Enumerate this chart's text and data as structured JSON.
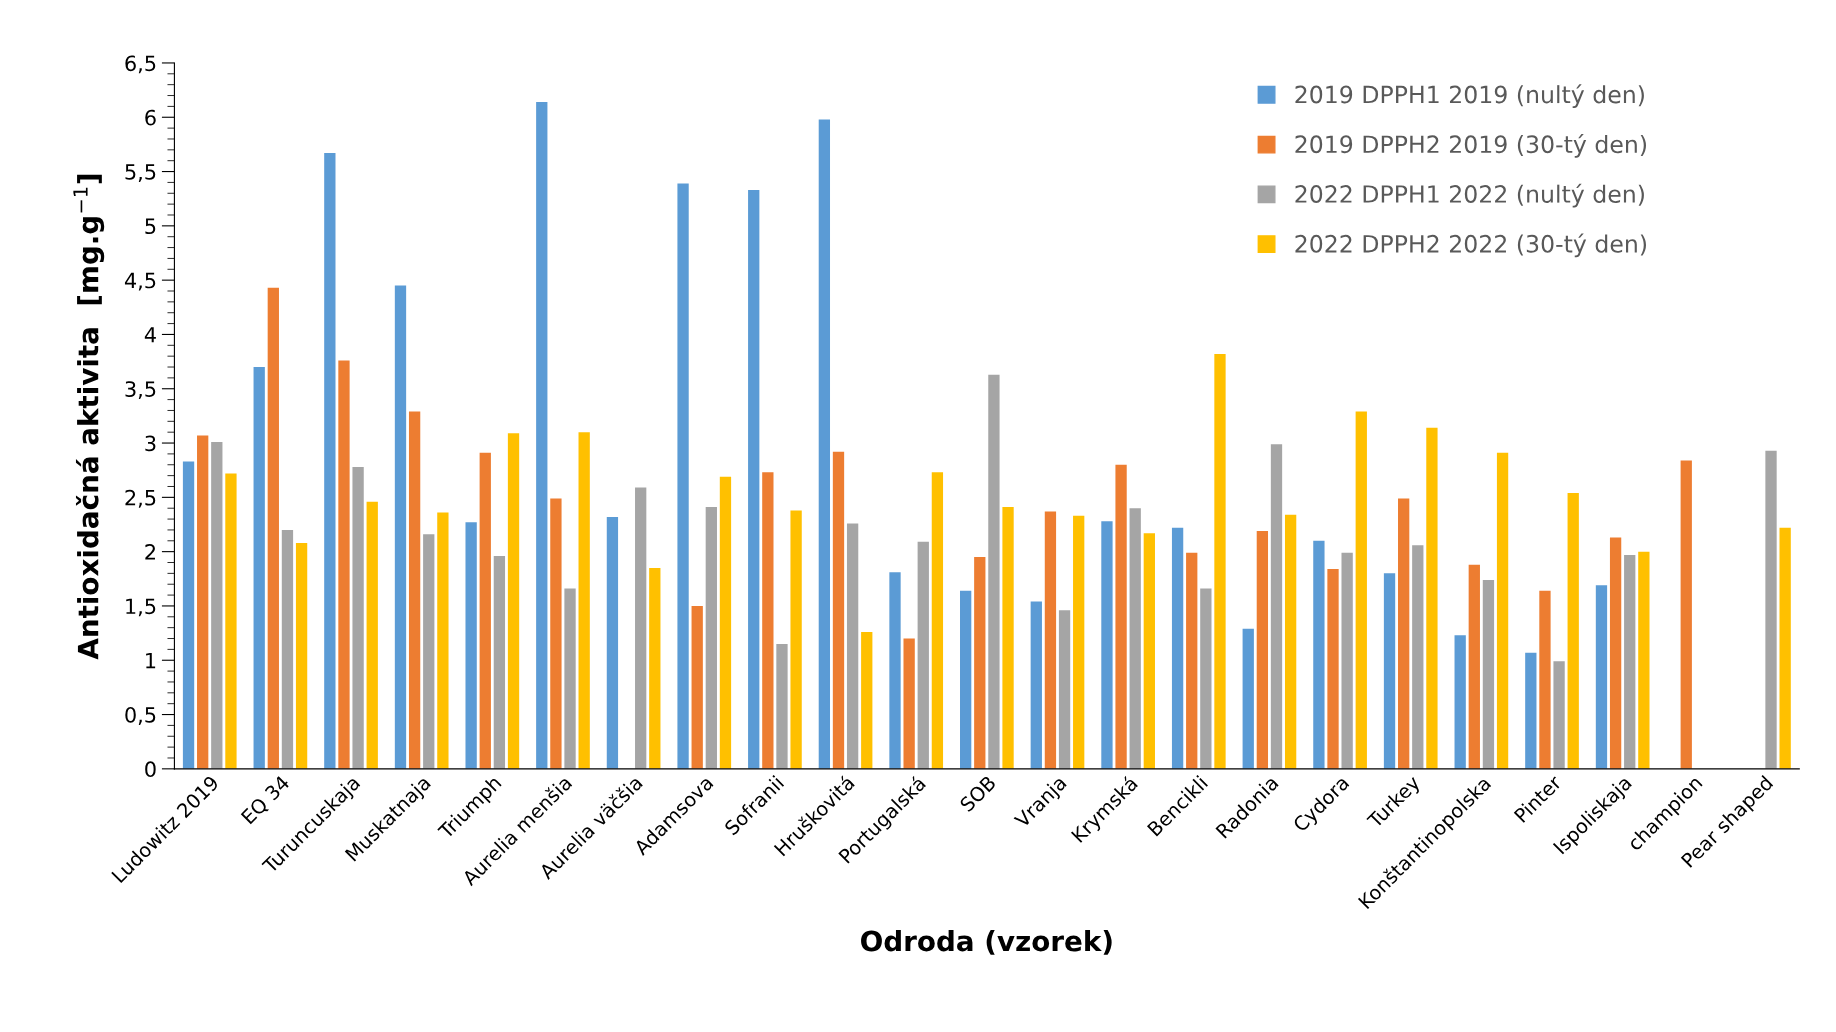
{
  "chart_data": {
    "type": "bar",
    "xlabel": "Odroda (vzorek)",
    "ylabel": "Antioxidačná aktivita  [mg.g$^{−1}$]",
    "categories": [
      "Ludowitz 2019",
      "EQ 34",
      "Turuncuskaja",
      "Muskatnaja",
      "Triumph",
      "Aurelia menšia",
      "Aurelia väčšia",
      "Adamsova",
      "Sofranii",
      "Hruškovitá",
      "Portugalská",
      "SOB",
      "Vranja",
      "Krymská",
      "Bencikli",
      "Radonia",
      "Cydora",
      "Turkey",
      "Konštantinopolska",
      "Pinter",
      "Ispoliskaja",
      "champion",
      "Pear shaped"
    ],
    "series": [
      {
        "name": "2019 DPPH1 2019 (nultý den)",
        "color": "#5b9bd5",
        "values": [
          2.83,
          3.7,
          5.67,
          4.45,
          2.27,
          6.14,
          2.32,
          5.39,
          5.33,
          5.98,
          1.81,
          1.64,
          1.54,
          2.28,
          2.22,
          1.29,
          2.1,
          1.8,
          1.23,
          1.07,
          1.69,
          null,
          null
        ]
      },
      {
        "name": "2019 DPPH2 2019 (30-tý den)",
        "color": "#ed7d31",
        "values": [
          3.07,
          4.43,
          3.76,
          3.29,
          2.91,
          2.49,
          null,
          1.5,
          2.73,
          2.92,
          1.2,
          1.95,
          2.37,
          2.8,
          1.99,
          2.19,
          1.84,
          2.49,
          1.88,
          1.64,
          2.13,
          2.84,
          null
        ]
      },
      {
        "name": "2022 DPPH1 2022 (nultý den)",
        "color": "#a5a5a5",
        "values": [
          3.01,
          2.2,
          2.78,
          2.16,
          1.96,
          1.66,
          2.59,
          2.41,
          1.15,
          2.26,
          2.09,
          3.63,
          1.46,
          2.4,
          1.66,
          2.99,
          1.99,
          2.06,
          1.74,
          0.99,
          1.97,
          null,
          2.93
        ]
      },
      {
        "name": "2022 DPPH2 2022 (30-tý den)",
        "color": "#ffc000",
        "values": [
          2.72,
          2.08,
          2.46,
          2.36,
          3.09,
          3.1,
          1.85,
          2.69,
          2.38,
          1.26,
          2.73,
          2.41,
          2.33,
          2.17,
          3.82,
          2.34,
          3.29,
          3.14,
          2.91,
          2.54,
          2.0,
          null,
          2.22
        ]
      }
    ],
    "ylim": [
      0,
      6.5
    ],
    "yticks": [
      0,
      {
        "value": 0.5,
        "label": "0,5"
      },
      1,
      {
        "value": 1.5,
        "label": "1,5"
      },
      2,
      {
        "value": 2.5,
        "label": "2,5"
      },
      3,
      {
        "value": 3.5,
        "label": "3,5"
      },
      4,
      {
        "value": 4.5,
        "label": "4,5"
      },
      5,
      {
        "value": 5.5,
        "label": "5,5"
      },
      6,
      {
        "value": 6.5,
        "label": "6,5"
      }
    ],
    "grid": false,
    "legend": "top right"
  }
}
